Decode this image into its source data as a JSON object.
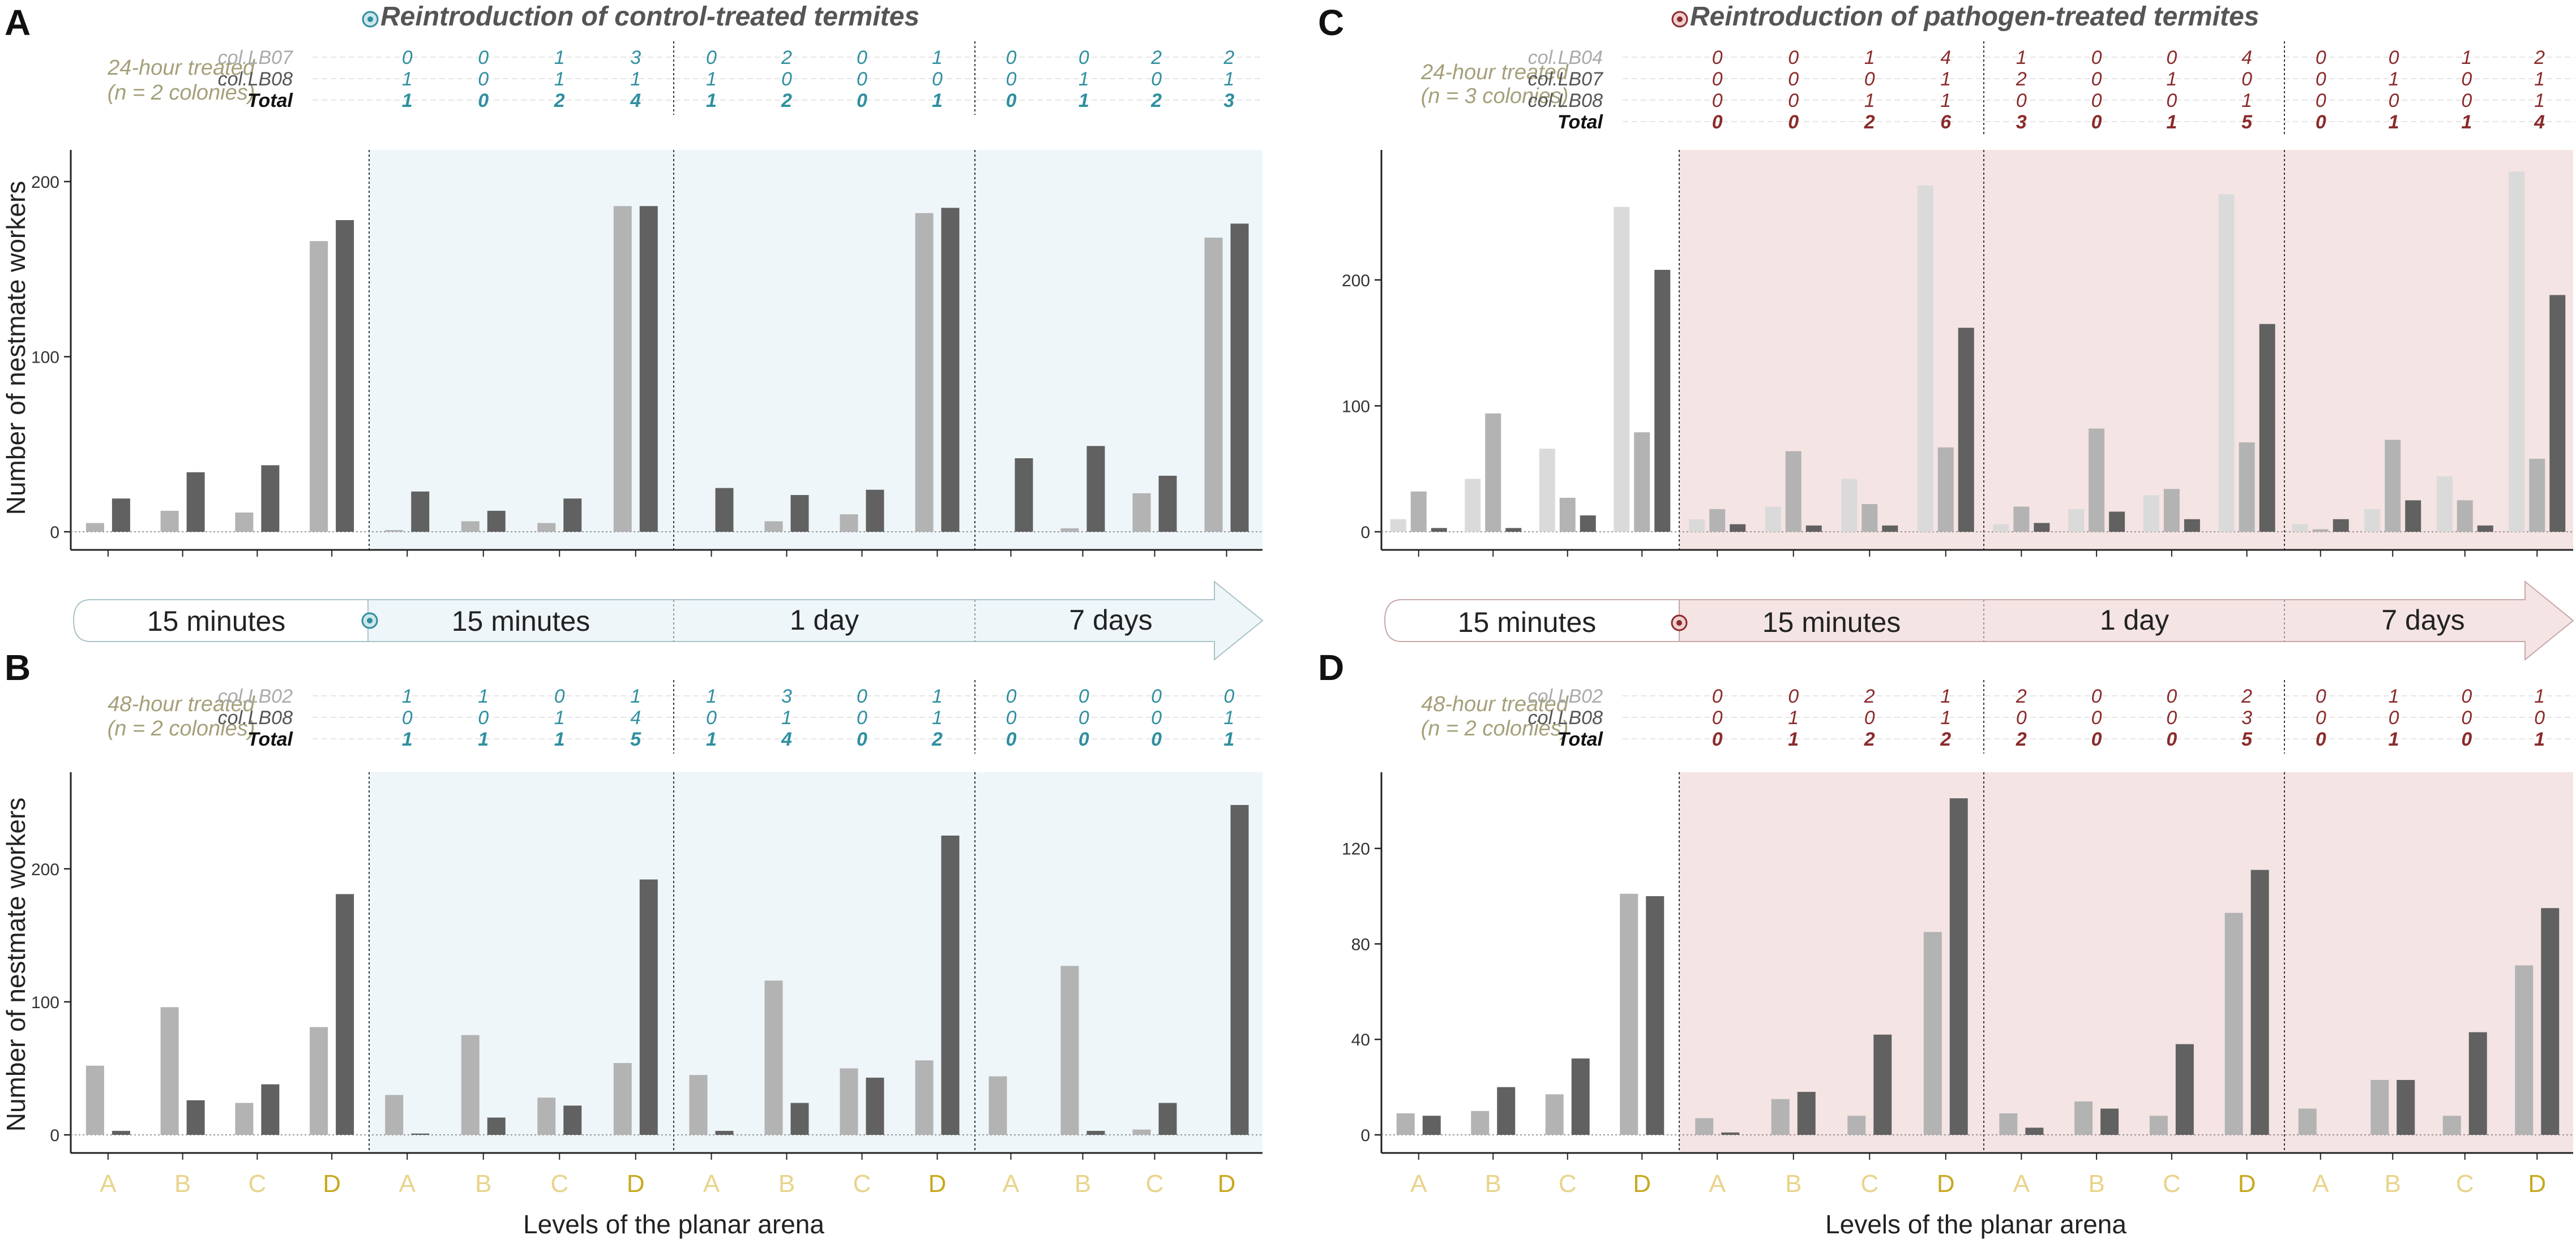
{
  "figure": {
    "ylabel": "Number of nestmate workers",
    "xlabel": "Levels of the planar arena",
    "levels": [
      "A",
      "B",
      "C",
      "D"
    ],
    "column_titles": {
      "control": "Reintroduction of control-treated termites",
      "pathogen": "Reintroduction of pathogen-treated termites"
    },
    "timeline": [
      "15 minutes",
      "15 minutes",
      "1 day",
      "7 days"
    ],
    "total_label": "Total",
    "colors": {
      "control_accent": "#2f8fa0",
      "control_bg": "#eef6f9",
      "pathogen_accent": "#8b2b2b",
      "pathogen_bg": "#f5e4e4",
      "bar_light": "#dadada",
      "bar_mid": "#b3b3b3",
      "bar_dark": "#616161",
      "level_light": "#e8d48a",
      "level_dark": "#c8a820",
      "treat_label": "#a5a07a"
    }
  },
  "chart_data": [
    {
      "panel": "A",
      "type": "bar",
      "treatment": "control",
      "treat_label": [
        "24-hour treated",
        "(n = 2 colonies)"
      ],
      "ylim": [
        0,
        210
      ],
      "yticks": [
        0,
        100,
        200
      ],
      "categories": [
        "A",
        "B",
        "C",
        "D"
      ],
      "periods": [
        "15 minutes",
        "15 minutes",
        "1 day",
        "7 days"
      ],
      "series": [
        {
          "name": "col.LB07",
          "shade": "mid",
          "values": [
            [
              5,
              12,
              11,
              166
            ],
            [
              1,
              6,
              5,
              186
            ],
            [
              0,
              6,
              10,
              182
            ],
            [
              0,
              2,
              22,
              168
            ]
          ]
        },
        {
          "name": "col.LB08",
          "shade": "dark",
          "values": [
            [
              19,
              34,
              38,
              178
            ],
            [
              23,
              12,
              19,
              186
            ],
            [
              25,
              21,
              24,
              185
            ],
            [
              42,
              49,
              32,
              176
            ]
          ]
        }
      ],
      "counts": {
        "col.LB07": [
          [
            0,
            0,
            1,
            3
          ],
          [
            0,
            2,
            0,
            1
          ],
          [
            0,
            0,
            2,
            2
          ]
        ],
        "col.LB08": [
          [
            1,
            0,
            1,
            1
          ],
          [
            1,
            0,
            0,
            0
          ],
          [
            0,
            1,
            0,
            1
          ]
        ],
        "Total": [
          [
            1,
            0,
            2,
            4
          ],
          [
            1,
            2,
            0,
            1
          ],
          [
            0,
            1,
            2,
            3
          ]
        ]
      }
    },
    {
      "panel": "B",
      "type": "bar",
      "treatment": "control",
      "treat_label": [
        "48-hour treated",
        "(n = 2 colonies)"
      ],
      "ylim": [
        0,
        262
      ],
      "yticks": [
        0,
        100,
        200
      ],
      "categories": [
        "A",
        "B",
        "C",
        "D"
      ],
      "periods": [
        "15 minutes",
        "15 minutes",
        "1 day",
        "7 days"
      ],
      "series": [
        {
          "name": "col.LB02",
          "shade": "mid",
          "values": [
            [
              52,
              96,
              24,
              81
            ],
            [
              30,
              75,
              28,
              54
            ],
            [
              45,
              116,
              50,
              56
            ],
            [
              44,
              127,
              4,
              0
            ]
          ]
        },
        {
          "name": "col.LB08",
          "shade": "dark",
          "values": [
            [
              3,
              26,
              38,
              181
            ],
            [
              1,
              13,
              22,
              192
            ],
            [
              3,
              24,
              43,
              225
            ],
            [
              0,
              3,
              24,
              248
            ]
          ]
        }
      ],
      "counts": {
        "col.LB02": [
          [
            1,
            3,
            0,
            1
          ],
          [
            0,
            0,
            0,
            0
          ]
        ],
        "col.LB08": [
          [
            0,
            1,
            0,
            1
          ],
          [
            0,
            0,
            0,
            1
          ]
        ],
        "Total": [
          [
            1,
            4,
            0,
            2
          ],
          [
            0,
            0,
            0,
            1
          ]
        ]
      },
      "counts_prefix": {
        "col.LB02": [
          1,
          1,
          0,
          1
        ],
        "col.LB08": [
          0,
          0,
          1,
          4
        ],
        "Total": [
          1,
          1,
          1,
          5
        ]
      }
    },
    {
      "panel": "C",
      "type": "bar",
      "treatment": "pathogen",
      "treat_label": [
        "24-hour treated",
        "(n = 3 colonies)"
      ],
      "ylim": [
        0,
        292
      ],
      "yticks": [
        0,
        100,
        200
      ],
      "categories": [
        "A",
        "B",
        "C",
        "D"
      ],
      "periods": [
        "15 minutes",
        "15 minutes",
        "1 day",
        "7 days"
      ],
      "series": [
        {
          "name": "col.LB04",
          "shade": "light",
          "values": [
            [
              10,
              42,
              66,
              258
            ],
            [
              10,
              20,
              42,
              275
            ],
            [
              6,
              18,
              29,
              268
            ],
            [
              6,
              18,
              44,
              286
            ]
          ]
        },
        {
          "name": "col.LB07",
          "shade": "mid",
          "values": [
            [
              32,
              94,
              27,
              79
            ],
            [
              18,
              64,
              22,
              67
            ],
            [
              20,
              82,
              34,
              71
            ],
            [
              2,
              73,
              25,
              58
            ]
          ]
        },
        {
          "name": "col.LB08",
          "shade": "dark",
          "values": [
            [
              3,
              3,
              13,
              208
            ],
            [
              6,
              5,
              5,
              162
            ],
            [
              7,
              16,
              10,
              165
            ],
            [
              10,
              25,
              5,
              188
            ]
          ]
        }
      ],
      "counts": {
        "col.LB04": [
          [
            0,
            0,
            1,
            4
          ],
          [
            1,
            0,
            0,
            4
          ],
          [
            0,
            0,
            1,
            2
          ]
        ],
        "col.LB07": [
          [
            0,
            0,
            0,
            1
          ],
          [
            2,
            0,
            1,
            0
          ],
          [
            0,
            1,
            0,
            1
          ]
        ],
        "col.LB08": [
          [
            0,
            0,
            1,
            1
          ],
          [
            0,
            0,
            0,
            1
          ],
          [
            0,
            0,
            0,
            1
          ]
        ],
        "Total": [
          [
            0,
            0,
            2,
            6
          ],
          [
            3,
            0,
            1,
            5
          ],
          [
            0,
            1,
            1,
            4
          ]
        ]
      }
    },
    {
      "panel": "D",
      "type": "bar",
      "treatment": "pathogen",
      "treat_label": [
        "48-hour treated",
        "(n = 2 colonies)"
      ],
      "ylim": [
        0,
        146
      ],
      "yticks": [
        0,
        40,
        80,
        120
      ],
      "categories": [
        "A",
        "B",
        "C",
        "D"
      ],
      "periods": [
        "15 minutes",
        "15 minutes",
        "1 day",
        "7 days"
      ],
      "series": [
        {
          "name": "col.LB02",
          "shade": "mid",
          "values": [
            [
              9,
              10,
              17,
              101
            ],
            [
              7,
              15,
              8,
              85
            ],
            [
              9,
              14,
              8,
              93
            ],
            [
              11,
              23,
              8,
              71
            ]
          ]
        },
        {
          "name": "col.LB08",
          "shade": "dark",
          "values": [
            [
              8,
              20,
              32,
              100
            ],
            [
              1,
              18,
              42,
              141
            ],
            [
              3,
              11,
              38,
              111
            ],
            [
              0,
              23,
              43,
              95
            ]
          ]
        }
      ],
      "counts": {
        "col.LB02": [
          [
            0,
            0,
            2,
            1
          ],
          [
            2,
            0,
            0,
            2
          ],
          [
            0,
            1,
            0,
            1
          ]
        ],
        "col.LB08": [
          [
            0,
            1,
            0,
            1
          ],
          [
            0,
            0,
            0,
            3
          ],
          [
            0,
            0,
            0,
            0
          ]
        ],
        "Total": [
          [
            0,
            1,
            2,
            2
          ],
          [
            2,
            0,
            0,
            5
          ],
          [
            0,
            1,
            0,
            1
          ]
        ]
      }
    }
  ]
}
